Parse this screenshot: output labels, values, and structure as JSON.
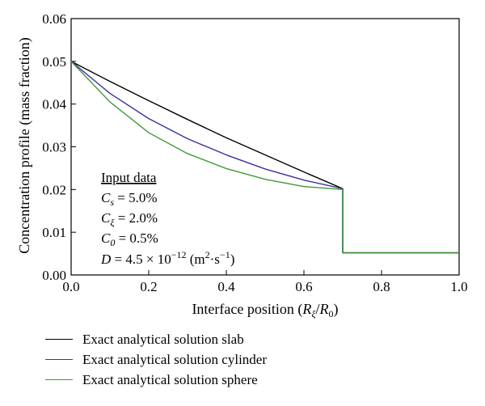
{
  "chart_data": {
    "type": "line",
    "xlabel": "Interface position (R_ξ/R_0)",
    "ylabel": "Concentration profile (mass fraction)",
    "xlim": [
      0,
      1
    ],
    "ylim": [
      0,
      0.06
    ],
    "x_ticks": [
      "0.0",
      "0.2",
      "0.4",
      "0.6",
      "0.8",
      "1.0"
    ],
    "y_ticks": [
      "0.00",
      "0.01",
      "0.02",
      "0.03",
      "0.04",
      "0.05",
      "0.06"
    ],
    "grid": false,
    "legend_position": "below",
    "series": [
      {
        "name": "Exact analytical solution slab",
        "color": "#000000",
        "points": [
          [
            0,
            0.05
          ],
          [
            0.1,
            0.0453
          ],
          [
            0.2,
            0.0408
          ],
          [
            0.3,
            0.0364
          ],
          [
            0.4,
            0.0321
          ],
          [
            0.5,
            0.0281
          ],
          [
            0.6,
            0.0241
          ],
          [
            0.7,
            0.0202
          ],
          [
            0.7,
            0.0052
          ],
          [
            1.0,
            0.0052
          ]
        ]
      },
      {
        "name": "Exact analytical solution cylinder",
        "color": "#3b2f9c",
        "points": [
          [
            0,
            0.05
          ],
          [
            0.1,
            0.0425
          ],
          [
            0.2,
            0.0366
          ],
          [
            0.3,
            0.0319
          ],
          [
            0.4,
            0.0281
          ],
          [
            0.5,
            0.0248
          ],
          [
            0.6,
            0.0222
          ],
          [
            0.7,
            0.0202
          ],
          [
            0.7,
            0.0052
          ],
          [
            1.0,
            0.0052
          ]
        ]
      },
      {
        "name": "Exact analytical solution sphere",
        "color": "#3f9a3a",
        "points": [
          [
            0,
            0.05
          ],
          [
            0.1,
            0.0405
          ],
          [
            0.2,
            0.0333
          ],
          [
            0.3,
            0.0284
          ],
          [
            0.4,
            0.0249
          ],
          [
            0.5,
            0.0224
          ],
          [
            0.6,
            0.0207
          ],
          [
            0.7,
            0.02
          ],
          [
            0.7,
            0.0052
          ],
          [
            1.0,
            0.0052
          ]
        ]
      }
    ],
    "annotation": {
      "title": "Input data",
      "lines": [
        {
          "sym": "C",
          "sub": "s",
          "value": " = 5.0%"
        },
        {
          "sym": "C",
          "sub": "ξ",
          "value": " = 2.0%"
        },
        {
          "sym": "C",
          "sub": "0",
          "value": " = 0.5%"
        }
      ],
      "diffusivity": {
        "sym": "D",
        "value": " = 4.5 × 10",
        "exp": "−12",
        "unit": " (m",
        "unit2": "·s",
        "unit_exp2": "−1",
        "close": ")"
      }
    }
  }
}
